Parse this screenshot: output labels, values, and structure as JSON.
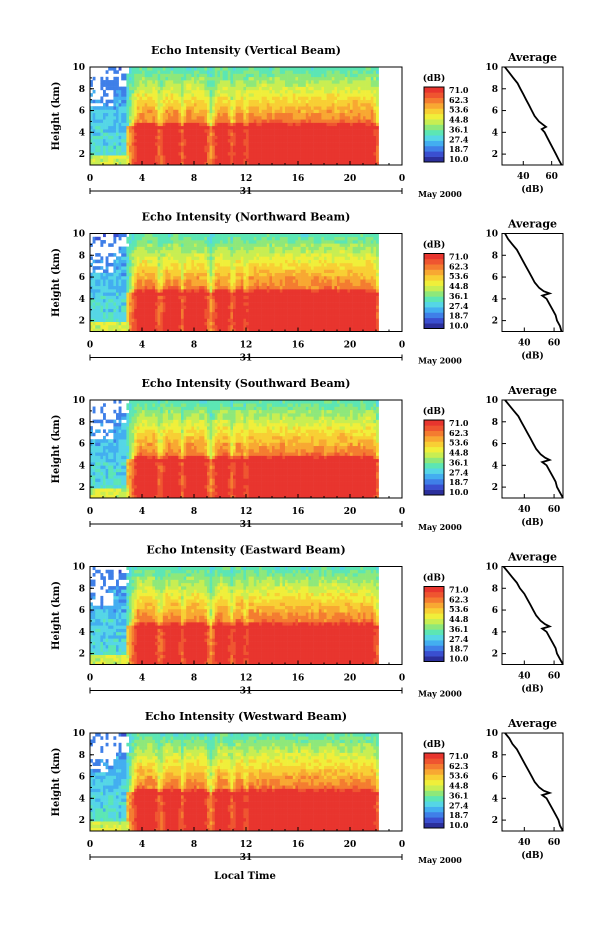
{
  "figure": {
    "xlabel": "Local Time",
    "date_label": "31",
    "month_label": "May 2000"
  },
  "colorbar": {
    "unit_label": "(dB)",
    "ticks": [
      "71.0",
      "62.3",
      "53.6",
      "44.8",
      "36.1",
      "27.4",
      "18.7",
      "10.0"
    ],
    "colors": [
      "#2b2f9c",
      "#3a4fd0",
      "#3f7fe8",
      "#43aef0",
      "#55d6e6",
      "#5ce6b4",
      "#8ee87a",
      "#c8ee52",
      "#f0ef3a",
      "#f8cf34",
      "#f8a832",
      "#f47c30",
      "#ef5530",
      "#e8352e"
    ]
  },
  "chart_data": [
    {
      "type": "heatmap",
      "title": "Echo Intensity (Vertical Beam)",
      "xlabel": "Local Time",
      "ylabel": "Height (km)",
      "xlim": [
        0,
        24
      ],
      "ylim": [
        1,
        10
      ],
      "xticks": [
        "0",
        "4",
        "8",
        "12",
        "16",
        "20",
        "0"
      ],
      "yticks": [
        "2",
        "4",
        "6",
        "8",
        "10"
      ],
      "zlim": [
        10.0,
        71.0
      ],
      "zunit": "(dB)",
      "rain_periods": [
        [
          3.7,
          5.0
        ],
        [
          5.8,
          6.8
        ],
        [
          7.4,
          8.8
        ],
        [
          9.8,
          10.6
        ],
        [
          11.3,
          11.7
        ],
        [
          12.3,
          21.8
        ]
      ],
      "bright_band_km": 4.5,
      "average_profile": {
        "title": "Average",
        "xlabel": "(dB)",
        "xticks": [
          "40",
          "60"
        ],
        "yticks": [
          "2",
          "4",
          "6",
          "8",
          "10"
        ],
        "xlim": [
          25,
          68
        ],
        "height_km": [
          10,
          9.5,
          9,
          8.5,
          8,
          7.5,
          7,
          6.5,
          6,
          5.5,
          5,
          4.7,
          4.5,
          4.3,
          4,
          3.5,
          3,
          2.5,
          2,
          1.5,
          1
        ],
        "db": [
          27,
          30,
          33,
          36,
          38,
          40,
          42,
          44,
          46,
          48,
          51,
          54,
          56,
          53,
          55,
          57,
          59,
          61,
          63,
          65,
          67
        ]
      }
    },
    {
      "type": "heatmap",
      "title": "Echo Intensity (Northward Beam)",
      "xlabel": "Local Time",
      "ylabel": "Height (km)",
      "xlim": [
        0,
        24
      ],
      "ylim": [
        1,
        10
      ],
      "xticks": [
        "0",
        "4",
        "8",
        "12",
        "16",
        "20",
        "0"
      ],
      "yticks": [
        "2",
        "4",
        "6",
        "8",
        "10"
      ],
      "zlim": [
        10.0,
        71.0
      ],
      "zunit": "(dB)",
      "rain_periods": [
        [
          3.7,
          5.0
        ],
        [
          5.8,
          6.8
        ],
        [
          7.4,
          8.8
        ],
        [
          9.8,
          10.6
        ],
        [
          11.3,
          11.7
        ],
        [
          12.3,
          21.8
        ]
      ],
      "bright_band_km": 4.6,
      "average_profile": {
        "title": "Average",
        "xlabel": "(dB)",
        "xticks": [
          "40",
          "60"
        ],
        "yticks": [
          "2",
          "4",
          "6",
          "8",
          "10"
        ],
        "xlim": [
          25,
          66
        ],
        "height_km": [
          10,
          9.5,
          9,
          8.5,
          8,
          7.5,
          7,
          6.5,
          6,
          5.5,
          5,
          4.7,
          4.5,
          4.3,
          4,
          3.5,
          3,
          2.5,
          2,
          1.5,
          1
        ],
        "db": [
          27,
          29,
          32,
          35,
          37,
          39,
          41,
          43,
          45,
          47,
          50,
          53,
          57,
          52,
          55,
          57,
          59,
          61,
          62,
          64,
          65
        ]
      }
    },
    {
      "type": "heatmap",
      "title": "Echo Intensity (Southward Beam)",
      "xlabel": "Local Time",
      "ylabel": "Height (km)",
      "xlim": [
        0,
        24
      ],
      "ylim": [
        1,
        10
      ],
      "xticks": [
        "0",
        "4",
        "8",
        "12",
        "16",
        "20",
        "0"
      ],
      "yticks": [
        "2",
        "4",
        "6",
        "8",
        "10"
      ],
      "zlim": [
        10.0,
        71.0
      ],
      "zunit": "(dB)",
      "rain_periods": [
        [
          3.7,
          5.0
        ],
        [
          5.8,
          6.8
        ],
        [
          7.4,
          8.8
        ],
        [
          9.8,
          10.6
        ],
        [
          11.3,
          11.7
        ],
        [
          12.3,
          21.8
        ]
      ],
      "bright_band_km": 4.5,
      "average_profile": {
        "title": "Average",
        "xlabel": "(dB)",
        "xticks": [
          "40",
          "60"
        ],
        "yticks": [
          "2",
          "4",
          "6",
          "8",
          "10"
        ],
        "xlim": [
          25,
          66
        ],
        "height_km": [
          10,
          9.5,
          9,
          8.5,
          8,
          7.5,
          7,
          6.5,
          6,
          5.5,
          5,
          4.7,
          4.5,
          4.3,
          4,
          3.5,
          3,
          2.5,
          2,
          1.5,
          1
        ],
        "db": [
          27,
          30,
          33,
          36,
          38,
          40,
          42,
          44,
          46,
          48,
          51,
          54,
          57,
          52,
          55,
          57,
          59,
          61,
          62,
          64,
          66
        ]
      }
    },
    {
      "type": "heatmap",
      "title": "Echo Intensity (Eastward Beam)",
      "xlabel": "Local Time",
      "ylabel": "Height (km)",
      "xlim": [
        0,
        24
      ],
      "ylim": [
        1,
        10
      ],
      "xticks": [
        "0",
        "4",
        "8",
        "12",
        "16",
        "20",
        "0"
      ],
      "yticks": [
        "2",
        "4",
        "6",
        "8",
        "10"
      ],
      "zlim": [
        10.0,
        71.0
      ],
      "zunit": "(dB)",
      "rain_periods": [
        [
          3.7,
          5.0
        ],
        [
          5.8,
          6.8
        ],
        [
          7.4,
          8.8
        ],
        [
          9.8,
          10.6
        ],
        [
          11.3,
          11.7
        ],
        [
          12.3,
          21.8
        ]
      ],
      "bright_band_km": 4.5,
      "average_profile": {
        "title": "Average",
        "xlabel": "(dB)",
        "xticks": [
          "40",
          "60"
        ],
        "yticks": [
          "2",
          "4",
          "6",
          "8",
          "10"
        ],
        "xlim": [
          25,
          66
        ],
        "height_km": [
          10,
          9.5,
          9,
          8.5,
          8,
          7.5,
          7,
          6.5,
          6,
          5.5,
          5,
          4.7,
          4.5,
          4.3,
          4,
          3.5,
          3,
          2.5,
          2,
          1.5,
          1
        ],
        "db": [
          26,
          29,
          32,
          35,
          37,
          40,
          42,
          44,
          46,
          48,
          51,
          54,
          57,
          52,
          55,
          57,
          59,
          61,
          62,
          64,
          66
        ]
      }
    },
    {
      "type": "heatmap",
      "title": "Echo Intensity (Westward Beam)",
      "xlabel": "Local Time",
      "ylabel": "Height (km)",
      "xlim": [
        0,
        24
      ],
      "ylim": [
        1,
        10
      ],
      "xticks": [
        "0",
        "4",
        "8",
        "12",
        "16",
        "20",
        "0"
      ],
      "yticks": [
        "2",
        "4",
        "6",
        "8",
        "10"
      ],
      "zlim": [
        10.0,
        71.0
      ],
      "zunit": "(dB)",
      "rain_periods": [
        [
          3.7,
          5.0
        ],
        [
          5.8,
          6.8
        ],
        [
          7.4,
          8.8
        ],
        [
          9.8,
          10.6
        ],
        [
          11.3,
          11.7
        ],
        [
          12.3,
          21.8
        ]
      ],
      "bright_band_km": 4.5,
      "average_profile": {
        "title": "Average",
        "xlabel": "(dB)",
        "xticks": [
          "40",
          "60"
        ],
        "yticks": [
          "2",
          "4",
          "6",
          "8",
          "10"
        ],
        "xlim": [
          25,
          66
        ],
        "height_km": [
          10,
          9.5,
          9,
          8.5,
          8,
          7.5,
          7,
          6.5,
          6,
          5.5,
          5,
          4.7,
          4.5,
          4.3,
          4,
          3.5,
          3,
          2.5,
          2,
          1.5,
          1
        ],
        "db": [
          27,
          30,
          32,
          35,
          37,
          39,
          41,
          43,
          45,
          47,
          50,
          53,
          57,
          52,
          55,
          57,
          59,
          61,
          63,
          64,
          66
        ]
      }
    }
  ]
}
